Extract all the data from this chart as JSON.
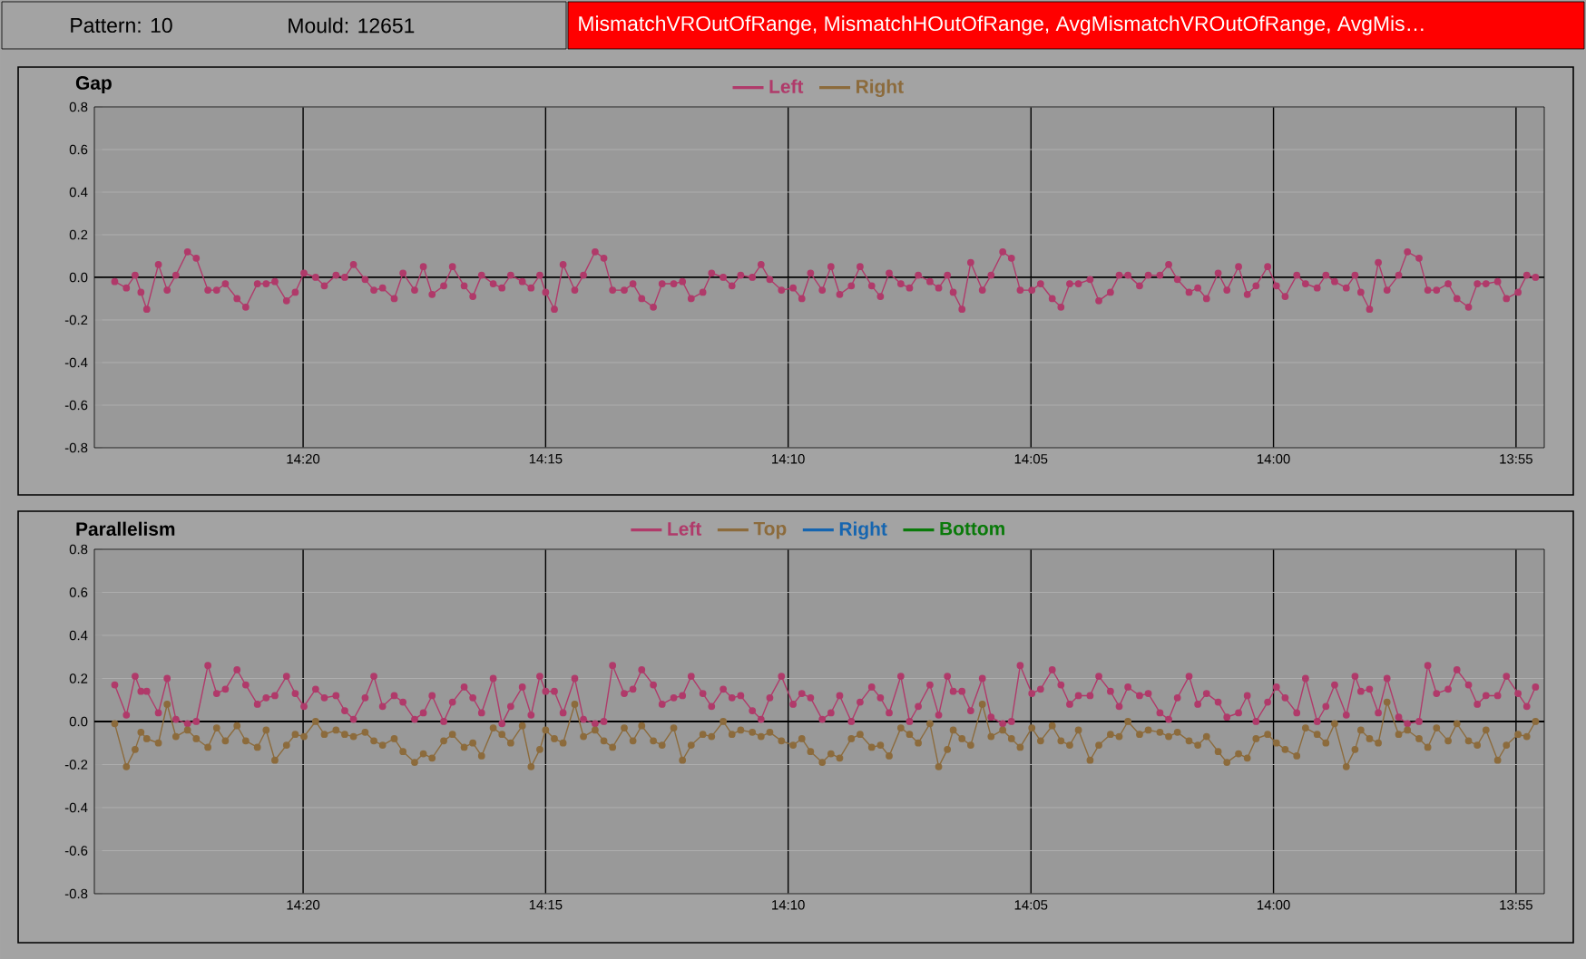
{
  "chart_data": [
    {
      "type": "line",
      "title": "Gap",
      "annotations": [
        "Pattern: 10",
        "Mould: 12651",
        "MismatchVROutOfRange, MismatchHOutOfRange, AvgMismatchVROutOfRange, AvgMis…"
      ],
      "x": [
        14.398,
        14.394,
        14.391,
        14.389,
        14.387,
        14.383,
        14.38,
        14.377,
        14.373,
        14.37,
        14.366,
        14.363,
        14.36,
        14.356,
        14.353,
        14.349,
        14.346,
        14.343,
        14.339,
        14.336,
        14.333,
        14.329,
        14.326,
        14.322,
        14.319,
        14.316,
        14.312,
        14.309,
        14.306,
        14.302,
        14.299,
        14.295,
        14.292,
        14.289,
        14.285,
        14.282,
        14.278,
        14.275,
        14.272,
        14.268,
        14.265,
        14.262,
        14.258,
        14.255,
        14.252,
        14.25,
        14.247,
        14.244,
        14.24,
        14.237,
        14.233,
        14.23,
        14.227,
        14.223,
        14.22,
        14.217,
        14.213,
        14.21,
        14.206,
        14.203,
        14.2,
        14.196,
        14.193,
        14.189,
        14.186,
        14.183,
        14.179,
        14.176,
        14.173,
        14.169,
        14.165,
        14.162,
        14.159,
        14.155,
        14.152,
        14.149,
        14.145,
        14.142,
        14.138,
        14.135,
        14.132,
        14.128,
        14.125,
        14.122,
        14.118,
        14.115,
        14.112,
        14.11,
        14.107,
        14.104,
        14.1,
        14.097,
        14.093,
        14.09,
        14.087,
        14.083,
        14.08,
        14.076,
        14.073,
        14.07,
        14.067,
        14.063,
        14.06,
        14.056,
        14.053,
        14.05,
        14.046,
        14.043,
        14.039,
        14.036,
        14.033,
        14.029,
        14.026,
        14.023,
        14.019,
        14.016,
        14.012,
        14.009,
        14.006,
        14.002,
        13.999,
        13.996,
        13.992,
        13.989,
        13.985,
        13.982,
        13.979,
        13.975,
        13.972,
        13.97,
        13.967,
        13.964,
        13.961,
        13.957,
        13.954,
        13.95,
        13.947,
        13.944,
        13.94,
        13.937,
        13.933,
        13.93,
        13.927,
        13.923,
        13.92,
        13.916,
        13.913,
        13.91
      ],
      "series": [
        {
          "name": "Left",
          "color": "#b03a6a",
          "values": [
            -0.02,
            -0.05,
            0.01,
            -0.07,
            -0.15,
            0.06,
            -0.06,
            0.01,
            0.12,
            0.09,
            -0.06,
            -0.06,
            -0.03,
            -0.1,
            -0.14,
            -0.03,
            -0.03,
            -0.02,
            -0.11,
            -0.07,
            0.02,
            0.0,
            -0.04,
            0.01,
            0.0,
            0.06,
            -0.01,
            -0.06,
            -0.05,
            -0.1,
            0.02,
            -0.06,
            0.05,
            -0.08,
            -0.04,
            0.05,
            -0.04,
            -0.09,
            0.01,
            -0.03,
            -0.05,
            0.01,
            -0.02,
            -0.05,
            0.01,
            -0.07,
            -0.15,
            0.06,
            -0.06,
            0.01,
            0.12,
            0.09,
            -0.06,
            -0.06,
            -0.03,
            -0.1,
            -0.14,
            -0.03,
            -0.03,
            -0.02,
            -0.1,
            -0.07,
            0.02,
            0.0,
            -0.04,
            0.01,
            0.0,
            0.06,
            -0.01,
            -0.06,
            -0.05,
            -0.1,
            0.02,
            -0.06,
            0.05,
            -0.08,
            -0.04,
            0.05,
            -0.04,
            -0.09,
            0.02,
            -0.03,
            -0.05,
            0.01,
            -0.02,
            -0.05,
            0.01,
            -0.07,
            -0.15,
            0.07,
            -0.06,
            0.01,
            0.12,
            0.09,
            -0.06,
            -0.06,
            -0.03,
            -0.1,
            -0.14,
            -0.03,
            -0.03,
            -0.01,
            -0.11,
            -0.07,
            0.01,
            0.01,
            -0.04,
            0.01,
            0.01,
            0.06,
            -0.01,
            -0.07,
            -0.05,
            -0.1,
            0.02,
            -0.06,
            0.05,
            -0.08,
            -0.04,
            0.05,
            -0.04,
            -0.09,
            0.01,
            -0.03,
            -0.05,
            0.01,
            -0.02,
            -0.05,
            0.01,
            -0.07,
            -0.15,
            0.07,
            -0.06,
            0.01,
            0.12,
            0.09,
            -0.06,
            -0.06,
            -0.03,
            -0.1,
            -0.14,
            -0.03,
            -0.03,
            -0.02,
            -0.1,
            -0.07,
            0.01,
            0.0
          ]
        },
        {
          "name": "Right",
          "color": "#8c6b3c",
          "values": [
            null,
            null,
            null,
            null,
            null,
            null,
            null,
            null,
            null,
            null,
            null,
            null,
            null,
            null,
            null,
            null,
            null,
            null,
            null,
            null,
            null,
            null,
            null,
            null,
            null,
            null,
            null,
            null,
            null,
            null,
            null,
            null,
            null,
            null,
            null,
            null,
            null,
            null,
            null,
            null,
            null,
            null,
            null,
            null,
            null,
            null,
            null,
            null,
            null,
            null,
            null,
            null,
            null,
            null,
            null,
            null,
            null,
            null,
            null,
            null,
            null,
            null,
            null,
            null,
            null,
            null,
            null,
            null,
            null,
            null,
            null,
            null,
            null,
            null,
            null,
            null,
            null,
            null,
            null,
            null,
            null,
            null,
            null,
            null,
            null,
            null,
            null,
            null,
            null,
            null,
            null,
            null,
            null,
            null,
            null,
            null,
            null,
            null,
            null,
            null,
            null,
            null,
            null,
            null,
            null,
            null,
            null,
            null,
            null,
            null,
            null,
            null,
            null,
            null,
            null,
            null,
            null,
            null,
            null,
            null,
            null,
            null,
            null,
            null,
            null,
            null,
            null,
            null,
            null,
            null,
            null,
            null,
            null,
            null,
            null,
            null,
            null,
            null,
            null,
            null,
            null,
            null,
            null,
            null,
            null,
            null,
            null,
            null
          ]
        }
      ],
      "xlim": [
        14.405,
        13.907
      ],
      "xticks": [
        {
          "value": 14.3333,
          "label": "14:20"
        },
        {
          "value": 14.25,
          "label": "14:15"
        },
        {
          "value": 14.1667,
          "label": "14:10"
        },
        {
          "value": 14.0833,
          "label": "14:05"
        },
        {
          "value": 14.0,
          "label": "14:00"
        },
        {
          "value": 13.9167,
          "label": "13:55"
        }
      ],
      "ylim": [
        -0.8,
        0.8
      ],
      "yticks": [
        -0.8,
        -0.6,
        -0.4,
        -0.2,
        {
          "value": 0,
          "label": "0.0"
        },
        0.2,
        0.4,
        0.6,
        0.8
      ],
      "ref_lines": [
        {
          "axis": "y",
          "value": 0,
          "color": "#000000"
        }
      ],
      "grid": true,
      "legend": "top",
      "marker": "circle",
      "line_style": "solid"
    },
    {
      "type": "line",
      "title": "Parallelism",
      "x": [
        14.398,
        14.394,
        14.391,
        14.389,
        14.387,
        14.383,
        14.38,
        14.377,
        14.373,
        14.37,
        14.366,
        14.363,
        14.36,
        14.356,
        14.353,
        14.349,
        14.346,
        14.343,
        14.339,
        14.336,
        14.333,
        14.329,
        14.326,
        14.322,
        14.319,
        14.316,
        14.312,
        14.309,
        14.306,
        14.302,
        14.299,
        14.295,
        14.292,
        14.289,
        14.285,
        14.282,
        14.278,
        14.275,
        14.272,
        14.268,
        14.265,
        14.262,
        14.258,
        14.255,
        14.252,
        14.25,
        14.247,
        14.244,
        14.24,
        14.237,
        14.233,
        14.23,
        14.227,
        14.223,
        14.22,
        14.217,
        14.213,
        14.21,
        14.206,
        14.203,
        14.2,
        14.196,
        14.193,
        14.189,
        14.186,
        14.183,
        14.179,
        14.176,
        14.173,
        14.169,
        14.165,
        14.162,
        14.159,
        14.155,
        14.152,
        14.149,
        14.145,
        14.142,
        14.138,
        14.135,
        14.132,
        14.128,
        14.125,
        14.122,
        14.118,
        14.115,
        14.112,
        14.11,
        14.107,
        14.104,
        14.1,
        14.097,
        14.093,
        14.09,
        14.087,
        14.083,
        14.08,
        14.076,
        14.073,
        14.07,
        14.067,
        14.063,
        14.06,
        14.056,
        14.053,
        14.05,
        14.046,
        14.043,
        14.039,
        14.036,
        14.033,
        14.029,
        14.026,
        14.023,
        14.019,
        14.016,
        14.012,
        14.009,
        14.006,
        14.002,
        13.999,
        13.996,
        13.992,
        13.989,
        13.985,
        13.982,
        13.979,
        13.975,
        13.972,
        13.97,
        13.967,
        13.964,
        13.961,
        13.957,
        13.954,
        13.95,
        13.947,
        13.944,
        13.94,
        13.937,
        13.933,
        13.93,
        13.927,
        13.923,
        13.92,
        13.916,
        13.913,
        13.91
      ],
      "series": [
        {
          "name": "Left",
          "color": "#b03a6a",
          "values": [
            0.17,
            0.03,
            0.21,
            0.14,
            0.14,
            0.04,
            0.2,
            0.01,
            -0.01,
            0.0,
            0.26,
            0.13,
            0.15,
            0.24,
            0.17,
            0.08,
            0.11,
            0.12,
            0.21,
            0.13,
            0.07,
            0.15,
            0.11,
            0.12,
            0.05,
            0.01,
            0.11,
            0.21,
            0.07,
            0.12,
            0.09,
            0.01,
            0.04,
            0.12,
            0.0,
            0.09,
            0.16,
            0.11,
            0.04,
            0.2,
            -0.01,
            0.07,
            0.16,
            0.03,
            0.21,
            0.14,
            0.14,
            0.04,
            0.2,
            0.01,
            -0.01,
            0.0,
            0.26,
            0.13,
            0.15,
            0.24,
            0.17,
            0.08,
            0.11,
            0.12,
            0.21,
            0.13,
            0.07,
            0.15,
            0.11,
            0.12,
            0.05,
            0.01,
            0.11,
            0.21,
            0.08,
            0.13,
            0.11,
            0.01,
            0.04,
            0.12,
            0.0,
            0.09,
            0.16,
            0.11,
            0.04,
            0.21,
            0.0,
            0.07,
            0.17,
            0.03,
            0.21,
            0.14,
            0.14,
            0.05,
            0.2,
            0.02,
            -0.01,
            0.0,
            0.26,
            0.13,
            0.15,
            0.24,
            0.17,
            0.08,
            0.12,
            0.12,
            0.21,
            0.14,
            0.07,
            0.16,
            0.12,
            0.13,
            0.04,
            0.01,
            0.11,
            0.21,
            0.08,
            0.13,
            0.09,
            0.02,
            0.04,
            0.12,
            0.0,
            0.09,
            0.16,
            0.11,
            0.04,
            0.2,
            0.0,
            0.07,
            0.17,
            0.03,
            0.21,
            0.14,
            0.15,
            0.04,
            0.2,
            0.02,
            -0.01,
            0.0,
            0.26,
            0.13,
            0.15,
            0.24,
            0.17,
            0.08,
            0.12,
            0.12,
            0.21,
            0.13,
            0.07,
            0.16
          ]
        },
        {
          "name": "Top",
          "color": "#8c6b3c",
          "values": [
            -0.01,
            -0.21,
            -0.13,
            -0.05,
            -0.08,
            -0.1,
            0.08,
            -0.07,
            -0.04,
            -0.08,
            -0.12,
            -0.03,
            -0.09,
            -0.02,
            -0.09,
            -0.12,
            -0.04,
            -0.18,
            -0.11,
            -0.06,
            -0.07,
            0.0,
            -0.06,
            -0.04,
            -0.06,
            -0.07,
            -0.05,
            -0.09,
            -0.11,
            -0.08,
            -0.14,
            -0.19,
            -0.15,
            -0.17,
            -0.09,
            -0.06,
            -0.12,
            -0.1,
            -0.16,
            -0.03,
            -0.06,
            -0.1,
            -0.02,
            -0.21,
            -0.13,
            -0.04,
            -0.08,
            -0.1,
            0.08,
            -0.07,
            -0.04,
            -0.09,
            -0.12,
            -0.03,
            -0.09,
            -0.02,
            -0.09,
            -0.11,
            -0.03,
            -0.18,
            -0.11,
            -0.06,
            -0.07,
            0.0,
            -0.06,
            -0.04,
            -0.05,
            -0.07,
            -0.05,
            -0.09,
            -0.11,
            -0.08,
            -0.14,
            -0.19,
            -0.15,
            -0.17,
            -0.08,
            -0.06,
            -0.12,
            -0.11,
            -0.16,
            -0.03,
            -0.06,
            -0.1,
            -0.01,
            -0.21,
            -0.13,
            -0.04,
            -0.08,
            -0.11,
            0.08,
            -0.07,
            -0.04,
            -0.08,
            -0.12,
            -0.03,
            -0.09,
            -0.02,
            -0.09,
            -0.11,
            -0.04,
            -0.18,
            -0.11,
            -0.06,
            -0.07,
            0.0,
            -0.06,
            -0.04,
            -0.05,
            -0.07,
            -0.05,
            -0.09,
            -0.11,
            -0.07,
            -0.14,
            -0.19,
            -0.15,
            -0.17,
            -0.08,
            -0.06,
            -0.1,
            -0.13,
            -0.16,
            -0.03,
            -0.06,
            -0.1,
            -0.01,
            -0.21,
            -0.13,
            -0.04,
            -0.08,
            -0.1,
            0.09,
            -0.06,
            -0.04,
            -0.08,
            -0.12,
            -0.03,
            -0.09,
            -0.01,
            -0.09,
            -0.11,
            -0.04,
            -0.18,
            -0.11,
            -0.06,
            -0.07,
            0.0
          ]
        },
        {
          "name": "Right",
          "color": "#1565b0",
          "values": [
            null,
            null,
            null,
            null,
            null,
            null,
            null,
            null,
            null,
            null,
            null,
            null,
            null,
            null,
            null,
            null,
            null,
            null,
            null,
            null,
            null,
            null,
            null,
            null,
            null,
            null,
            null,
            null,
            null,
            null,
            null,
            null,
            null,
            null,
            null,
            null,
            null,
            null,
            null,
            null,
            null,
            null,
            null,
            null,
            null,
            null,
            null,
            null,
            null,
            null,
            null,
            null,
            null,
            null,
            null,
            null,
            null,
            null,
            null,
            null,
            null,
            null,
            null,
            null,
            null,
            null,
            null,
            null,
            null,
            null,
            null,
            null,
            null,
            null,
            null,
            null,
            null,
            null,
            null,
            null,
            null,
            null,
            null,
            null,
            null,
            null,
            null,
            null,
            null,
            null,
            null,
            null,
            null,
            null,
            null,
            null,
            null,
            null,
            null,
            null,
            null,
            null,
            null,
            null,
            null,
            null,
            null,
            null,
            null,
            null,
            null,
            null,
            null,
            null,
            null,
            null,
            null,
            null,
            null,
            null,
            null,
            null,
            null,
            null,
            null,
            null,
            null,
            null,
            null,
            null,
            null,
            null,
            null,
            null,
            null,
            null,
            null,
            null,
            null,
            null,
            null,
            null,
            null,
            null,
            null,
            null,
            null,
            null
          ]
        },
        {
          "name": "Bottom",
          "color": "#0a7a0a",
          "values": [
            null,
            null,
            null,
            null,
            null,
            null,
            null,
            null,
            null,
            null,
            null,
            null,
            null,
            null,
            null,
            null,
            null,
            null,
            null,
            null,
            null,
            null,
            null,
            null,
            null,
            null,
            null,
            null,
            null,
            null,
            null,
            null,
            null,
            null,
            null,
            null,
            null,
            null,
            null,
            null,
            null,
            null,
            null,
            null,
            null,
            null,
            null,
            null,
            null,
            null,
            null,
            null,
            null,
            null,
            null,
            null,
            null,
            null,
            null,
            null,
            null,
            null,
            null,
            null,
            null,
            null,
            null,
            null,
            null,
            null,
            null,
            null,
            null,
            null,
            null,
            null,
            null,
            null,
            null,
            null,
            null,
            null,
            null,
            null,
            null,
            null,
            null,
            null,
            null,
            null,
            null,
            null,
            null,
            null,
            null,
            null,
            null,
            null,
            null,
            null,
            null,
            null,
            null,
            null,
            null,
            null,
            null,
            null,
            null,
            null,
            null,
            null,
            null,
            null,
            null,
            null,
            null,
            null,
            null,
            null,
            null,
            null,
            null,
            null,
            null,
            null,
            null,
            null,
            null,
            null,
            null,
            null,
            null,
            null,
            null,
            null,
            null,
            null,
            null,
            null,
            null,
            null,
            null,
            null,
            null,
            null,
            null,
            null
          ]
        }
      ],
      "xlim": [
        14.405,
        13.907
      ],
      "xticks": [
        {
          "value": 14.3333,
          "label": "14:20"
        },
        {
          "value": 14.25,
          "label": "14:15"
        },
        {
          "value": 14.1667,
          "label": "14:10"
        },
        {
          "value": 14.0833,
          "label": "14:05"
        },
        {
          "value": 14.0,
          "label": "14:00"
        },
        {
          "value": 13.9167,
          "label": "13:55"
        }
      ],
      "ylim": [
        -0.8,
        0.8
      ],
      "yticks": [
        -0.8,
        -0.6,
        -0.4,
        -0.2,
        {
          "value": 0,
          "label": "0.0"
        },
        0.2,
        0.4,
        0.6,
        0.8
      ],
      "ref_lines": [
        {
          "axis": "y",
          "value": 0,
          "color": "#000000"
        }
      ],
      "grid": true,
      "legend": "top",
      "marker": "circle",
      "line_style": "solid"
    }
  ]
}
